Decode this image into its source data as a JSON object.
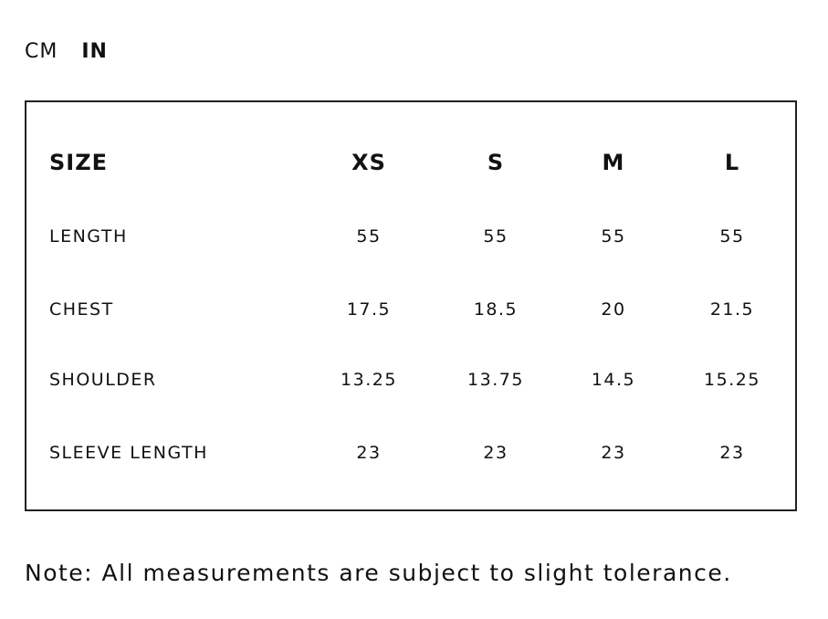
{
  "units": {
    "cm": "CM",
    "in": "IN",
    "selected": "IN"
  },
  "table": {
    "header": [
      "SIZE",
      "XS",
      "S",
      "M",
      "L"
    ],
    "rows": [
      [
        "LENGTH",
        "55",
        "55",
        "55",
        "55"
      ],
      [
        "CHEST",
        "17.5",
        "18.5",
        "20",
        "21.5"
      ],
      [
        "SHOULDER",
        "13.25",
        "13.75",
        "14.5",
        "15.25"
      ],
      [
        "SLEEVE LENGTH",
        "23",
        "23",
        "23",
        "23"
      ]
    ]
  },
  "note": "Note: All measurements are subject to slight tolerance."
}
